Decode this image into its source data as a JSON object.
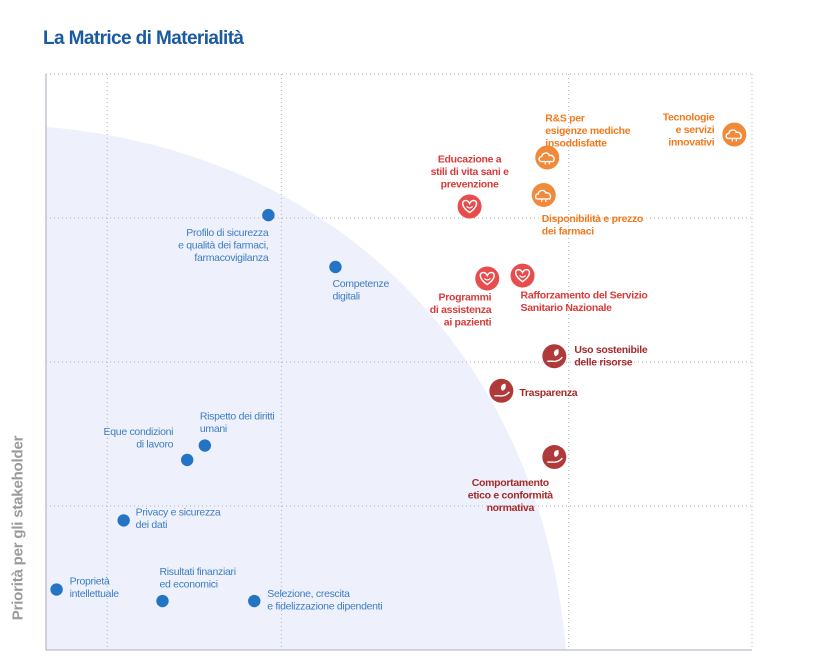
{
  "title": "La Matrice di Materialità",
  "colors": {
    "title": "#1a5aa0",
    "blue": "#2474c6",
    "blue_text": "#3e7cc2",
    "orange": "#f08a3a",
    "orange_text": "#f07a1e",
    "red": "#e84c4c",
    "red_text": "#d93a3a",
    "darkred": "#b03a3a",
    "darkred_text": "#a52a2a",
    "background_area": "#eef1fb",
    "grid": "#a8b4c4",
    "axis": "#b9bec6",
    "ylabel": "#9a9a9a"
  },
  "chart_data": {
    "type": "scatter",
    "title": "La Matrice di Materialità",
    "xlabel": "",
    "ylabel": "Priorità per gli stakeholder",
    "grid": true,
    "points": [
      {
        "label": [
          "Tecnologie",
          "e servizi",
          "innovativi"
        ],
        "x": 0.975,
        "y": 0.895,
        "group": "orange",
        "icon": "cloud-icon"
      },
      {
        "label": [
          "R&S per",
          "esigenze mediche",
          "insoddisfatte"
        ],
        "x": 0.71,
        "y": 0.855,
        "group": "orange",
        "icon": "cloud-icon"
      },
      {
        "label": [
          "Disponibilità e prezzo",
          "dei farmaci"
        ],
        "x": 0.705,
        "y": 0.79,
        "group": "orange",
        "icon": "cloud-icon"
      },
      {
        "label": [
          "Educazione a",
          "stili di vita sani e",
          "prevenzione"
        ],
        "x": 0.6,
        "y": 0.77,
        "group": "red",
        "icon": "heart-icon"
      },
      {
        "label": [
          "Programmi",
          "di assistenza",
          "ai pazienti"
        ],
        "x": 0.625,
        "y": 0.645,
        "group": "red",
        "icon": "heart-icon"
      },
      {
        "label": [
          "Rafforzamento del Servizio",
          "Sanitario Nazionale"
        ],
        "x": 0.675,
        "y": 0.65,
        "group": "red",
        "icon": "heart-icon"
      },
      {
        "label": [
          "Uso sostenibile",
          "delle risorse"
        ],
        "x": 0.72,
        "y": 0.51,
        "group": "darkred",
        "icon": "hand-leaf-icon"
      },
      {
        "label": [
          "Trasparenza"
        ],
        "x": 0.645,
        "y": 0.45,
        "group": "darkred",
        "icon": "hand-leaf-icon"
      },
      {
        "label": [
          "Comportamento",
          "etico e conformità",
          "normativa"
        ],
        "x": 0.72,
        "y": 0.335,
        "group": "darkred",
        "icon": "hand-leaf-icon"
      },
      {
        "label": [
          "Profilo di sicurezza",
          "e qualità dei farmaci,",
          "farmacovigilanza"
        ],
        "x": 0.315,
        "y": 0.755,
        "group": "blue"
      },
      {
        "label": [
          "Competenze",
          "digitali"
        ],
        "x": 0.41,
        "y": 0.665,
        "group": "blue"
      },
      {
        "label": [
          "Rispetto dei diritti",
          "umani"
        ],
        "x": 0.225,
        "y": 0.355,
        "group": "blue"
      },
      {
        "label": [
          "Eque condizioni",
          "di lavoro"
        ],
        "x": 0.2,
        "y": 0.33,
        "group": "blue"
      },
      {
        "label": [
          "Privacy e sicurezza",
          "dei dati"
        ],
        "x": 0.11,
        "y": 0.225,
        "group": "blue"
      },
      {
        "label": [
          "Proprietà",
          "intellettuale"
        ],
        "x": 0.015,
        "y": 0.105,
        "group": "blue"
      },
      {
        "label": [
          "Risultati finanziari",
          "ed economici"
        ],
        "x": 0.165,
        "y": 0.085,
        "group": "blue"
      },
      {
        "label": [
          "Selezione, crescita",
          "e fidelizzazione dipendenti"
        ],
        "x": 0.295,
        "y": 0.085,
        "group": "blue"
      }
    ]
  }
}
